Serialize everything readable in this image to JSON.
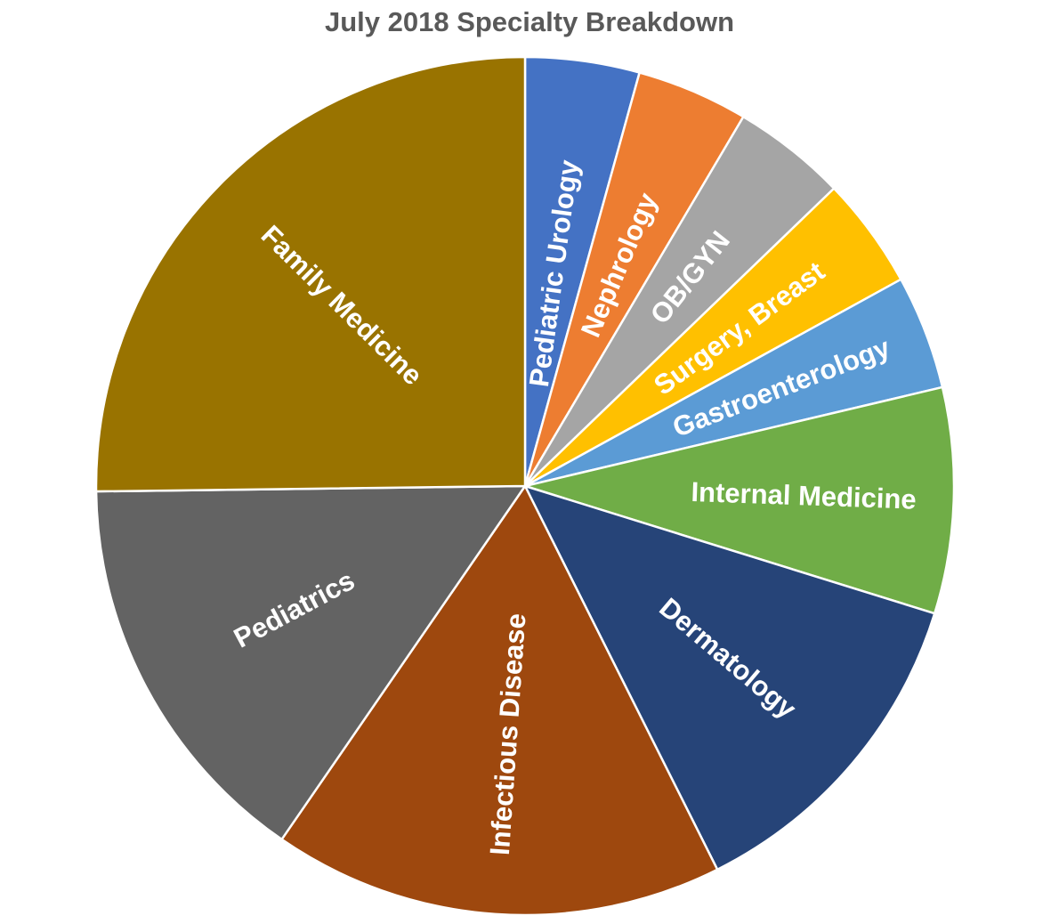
{
  "chart_data": {
    "type": "pie",
    "title": "July 2018 Specialty Breakdown",
    "start_angle_deg": 0,
    "direction": "clockwise",
    "slices": [
      {
        "label": "Pediatric Urology",
        "value": 4.3,
        "color": "#4472C4"
      },
      {
        "label": "Nephrology",
        "value": 4.2,
        "color": "#ED7D31"
      },
      {
        "label": "OB/GYN",
        "value": 4.3,
        "color": "#A5A5A5"
      },
      {
        "label": "Surgery, Breast",
        "value": 4.2,
        "color": "#FFC000"
      },
      {
        "label": "Gastroenterology",
        "value": 4.3,
        "color": "#5B9BD5"
      },
      {
        "label": "Internal Medicine",
        "value": 8.5,
        "color": "#70AD47"
      },
      {
        "label": "Dermatology",
        "value": 12.8,
        "color": "#264478"
      },
      {
        "label": "Infectious Disease",
        "value": 17.0,
        "color": "#9E480E"
      },
      {
        "label": "Pediatrics",
        "value": 15.2,
        "color": "#636363"
      },
      {
        "label": "Family Medicine",
        "value": 25.2,
        "color": "#997300"
      }
    ]
  }
}
